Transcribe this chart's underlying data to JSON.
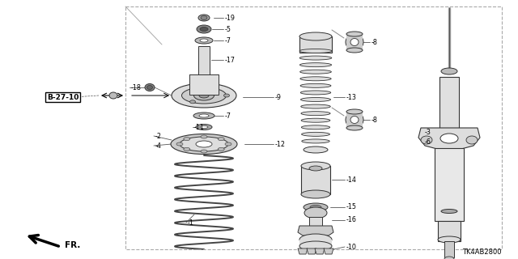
{
  "bg_color": "#ffffff",
  "border_color": "#aaaaaa",
  "text_color": "#000000",
  "diagram_code": "TK4AB2800",
  "lc": "#333333",
  "fc": "#cccccc",
  "wc": "#ffffff"
}
